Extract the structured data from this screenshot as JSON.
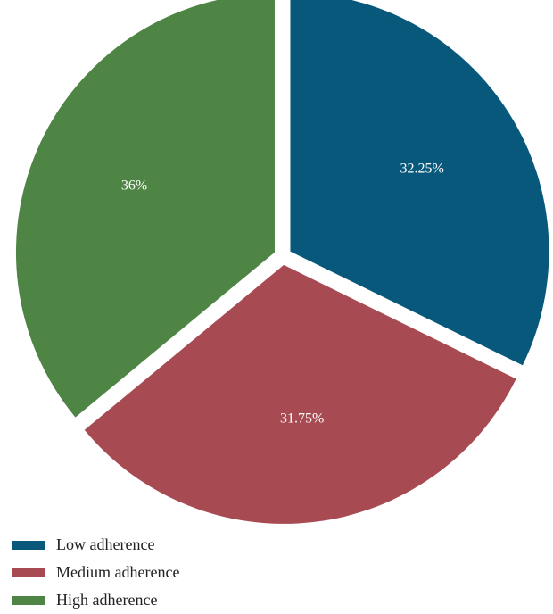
{
  "chart_data": {
    "type": "pie",
    "slices": [
      {
        "name": "Low adherence",
        "value": 32.25,
        "label": "32.25%",
        "color": "#07587a"
      },
      {
        "name": "Medium adherence",
        "value": 31.75,
        "label": "31.75%",
        "color": "#a84a52"
      },
      {
        "name": "High adherence",
        "value": 36,
        "label": "36%",
        "color": "#4e8444"
      }
    ],
    "start_angle_deg": 0,
    "direction": "clockwise",
    "exploded": true,
    "legend_position": "bottom-left"
  },
  "legend": {
    "items": [
      {
        "label": "Low adherence",
        "color": "#07587a"
      },
      {
        "label": "Medium adherence",
        "color": "#a84a52"
      },
      {
        "label": "High adherence",
        "color": "#4e8444"
      }
    ]
  }
}
